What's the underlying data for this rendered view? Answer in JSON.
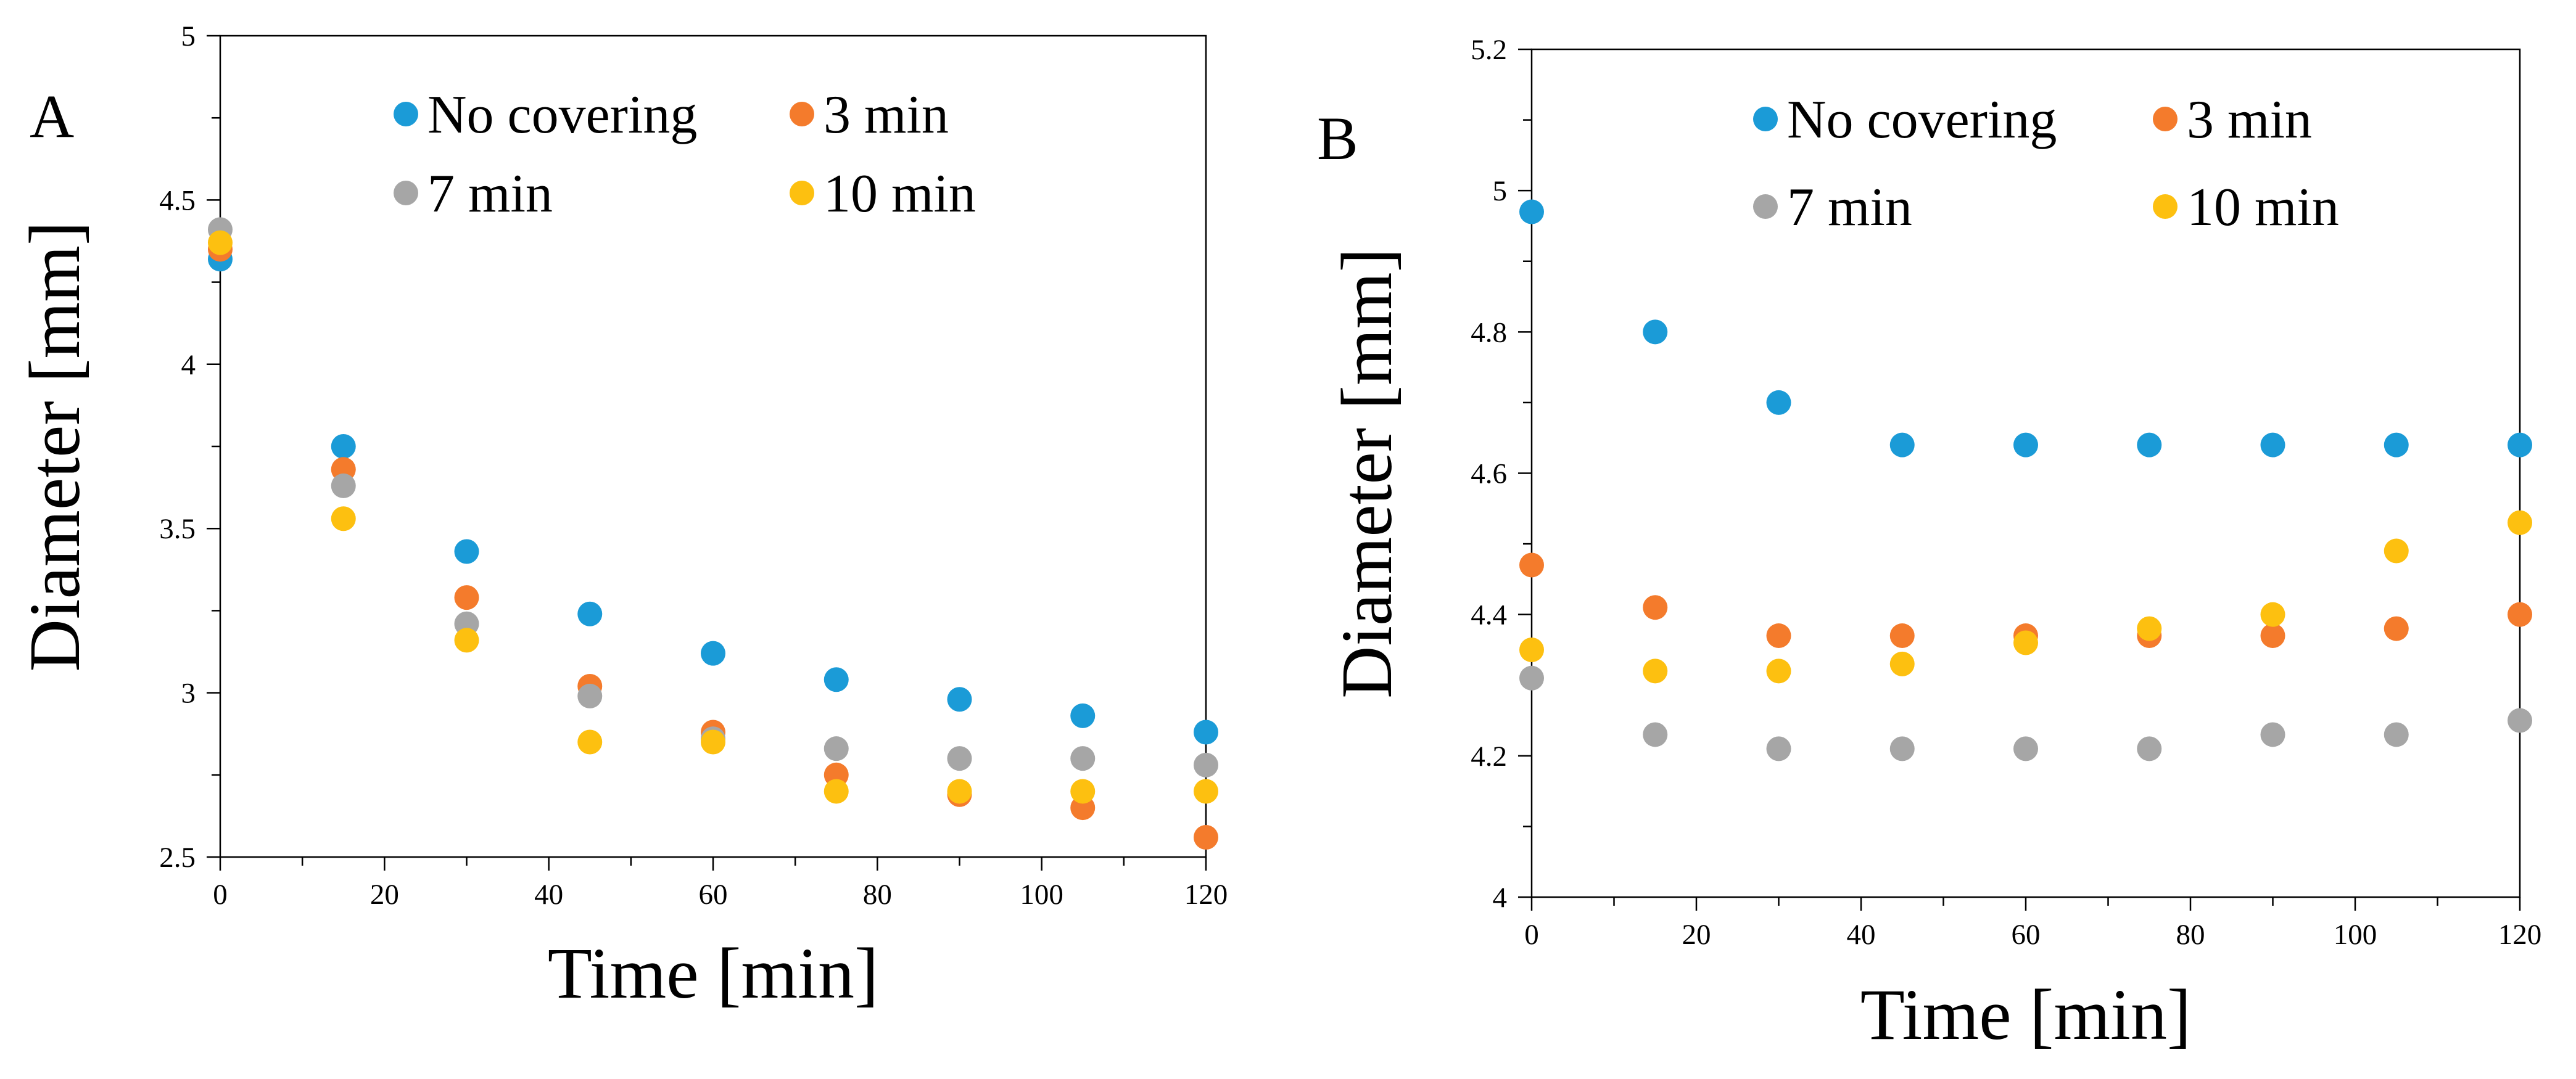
{
  "colors": {
    "no_covering": "#1B9BD7",
    "min3": "#F47B2C",
    "min7": "#A6A6A6",
    "min10": "#FDC010"
  },
  "chart_data": [
    {
      "type": "scatter",
      "panel_label": "A",
      "xlabel": "Time [min]",
      "ylabel": "Diameter [mm]",
      "xlim": [
        0,
        120
      ],
      "ylim": [
        2.5,
        5
      ],
      "xticks": [
        0,
        20,
        40,
        60,
        80,
        100,
        120
      ],
      "yticks": [
        2.5,
        3,
        3.5,
        4,
        4.5,
        5
      ],
      "ytick_labels": [
        "2.5",
        "3",
        "3.5",
        "4",
        "4.5",
        "5"
      ],
      "grid": false,
      "legend_position": "top",
      "x": [
        0,
        15,
        30,
        45,
        60,
        75,
        90,
        105,
        120
      ],
      "series": [
        {
          "name": "No covering",
          "color": "#1B9BD7",
          "values": [
            4.32,
            3.75,
            3.43,
            3.24,
            3.12,
            3.04,
            2.98,
            2.93,
            2.88
          ]
        },
        {
          "name": "3 min",
          "color": "#F47B2C",
          "values": [
            4.35,
            3.68,
            3.29,
            3.02,
            2.88,
            2.75,
            2.69,
            2.65,
            2.56
          ]
        },
        {
          "name": "7 min",
          "color": "#A6A6A6",
          "values": [
            4.41,
            3.63,
            3.21,
            2.99,
            2.86,
            2.83,
            2.8,
            2.8,
            2.78
          ]
        },
        {
          "name": "10 min",
          "color": "#FDC010",
          "values": [
            4.37,
            3.53,
            3.16,
            2.85,
            2.85,
            2.7,
            2.7,
            2.7,
            2.7
          ]
        }
      ]
    },
    {
      "type": "scatter",
      "panel_label": "B",
      "xlabel": "Time [min]",
      "ylabel": "Diameter [mm]",
      "xlim": [
        0,
        120
      ],
      "ylim": [
        4,
        5.2
      ],
      "xticks": [
        0,
        20,
        40,
        60,
        80,
        100,
        120
      ],
      "yticks": [
        4,
        4.2,
        4.4,
        4.6,
        4.8,
        5,
        5.2
      ],
      "ytick_labels": [
        "4",
        "4.2",
        "4.4",
        "4.6",
        "4.8",
        "5",
        "5.2"
      ],
      "grid": false,
      "legend_position": "top",
      "x": [
        0,
        15,
        30,
        45,
        60,
        75,
        90,
        105,
        120
      ],
      "series": [
        {
          "name": "No covering",
          "color": "#1B9BD7",
          "values": [
            4.97,
            4.8,
            4.7,
            4.64,
            4.64,
            4.64,
            4.64,
            4.64,
            4.64
          ]
        },
        {
          "name": "3 min",
          "color": "#F47B2C",
          "values": [
            4.47,
            4.41,
            4.37,
            4.37,
            4.37,
            4.37,
            4.37,
            4.38,
            4.4
          ]
        },
        {
          "name": "7 min",
          "color": "#A6A6A6",
          "values": [
            4.31,
            4.23,
            4.21,
            4.21,
            4.21,
            4.21,
            4.23,
            4.23,
            4.25
          ]
        },
        {
          "name": "10 min",
          "color": "#FDC010",
          "values": [
            4.35,
            4.32,
            4.32,
            4.33,
            4.36,
            4.38,
            4.4,
            4.49,
            4.53
          ]
        }
      ]
    }
  ]
}
